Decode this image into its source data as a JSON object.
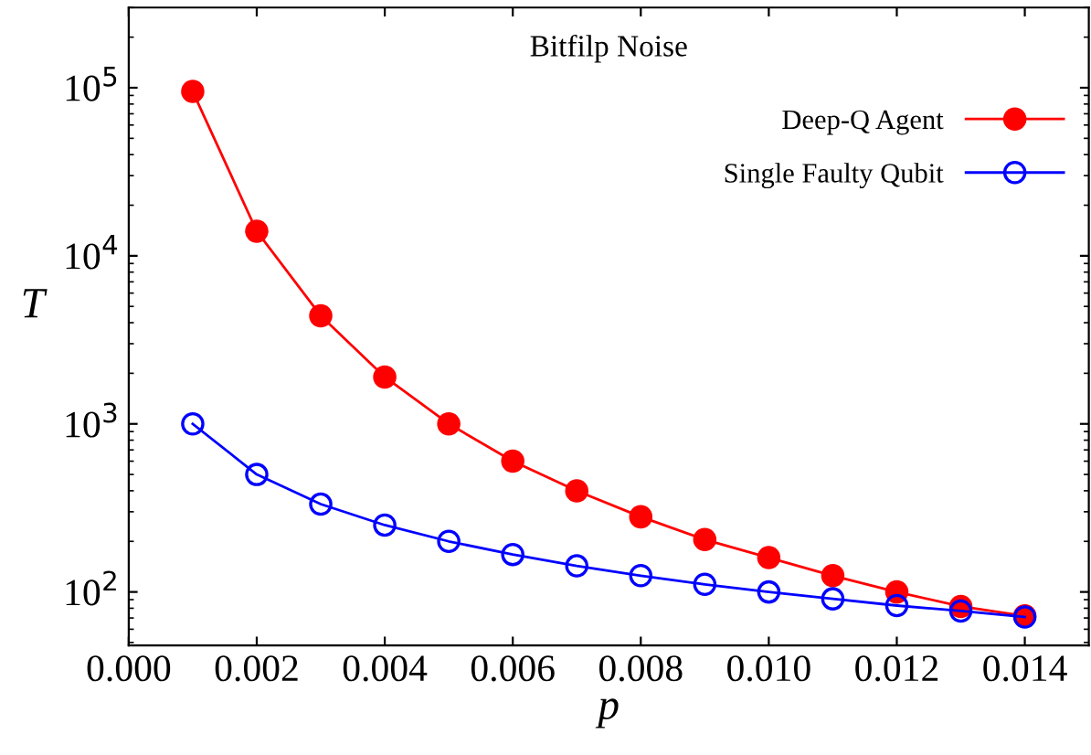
{
  "chart_data": {
    "type": "line",
    "title": "Bitfilp Noise",
    "xlabel": "p",
    "ylabel": "T",
    "x": [
      0.001,
      0.002,
      0.003,
      0.004,
      0.005,
      0.006,
      0.007,
      0.008,
      0.009,
      0.01,
      0.011,
      0.012,
      0.013,
      0.014
    ],
    "series": [
      {
        "name": "Deep-Q Agent",
        "color": "#ff0000",
        "values": [
          95000,
          14000,
          4400,
          1900,
          1000,
          600,
          400,
          280,
          205,
          160,
          125,
          100,
          82,
          72
        ]
      },
      {
        "name": "Single Faulty Qubit",
        "color": "#0000ff",
        "values": [
          1000,
          500,
          333,
          250,
          200,
          167,
          143,
          125,
          111,
          100,
          91,
          83,
          77,
          71
        ]
      }
    ],
    "log": "y",
    "marker": "circle",
    "line_style": "solid",
    "legend": "top right",
    "grid": false,
    "xlim": [
      0.0,
      0.015
    ],
    "xticks": [
      {
        "value": 0.0,
        "label": "0.000"
      },
      {
        "value": 0.002,
        "label": "0.002"
      },
      {
        "value": 0.004,
        "label": "0.004"
      },
      {
        "value": 0.006,
        "label": "0.006"
      },
      {
        "value": 0.008,
        "label": "0.008"
      },
      {
        "value": 0.01,
        "label": "0.010"
      },
      {
        "value": 0.012,
        "label": "0.012"
      },
      {
        "value": 0.014,
        "label": "0.014"
      }
    ],
    "ylim": [
      48,
      300000
    ],
    "yticks": [
      {
        "value": 100,
        "label": "10$^{2}$"
      },
      {
        "value": 1000,
        "label": "10$^{3}$"
      },
      {
        "value": 10000,
        "label": "10$^{4}$"
      },
      {
        "value": 100000,
        "label": "10$^{5}$"
      }
    ]
  }
}
